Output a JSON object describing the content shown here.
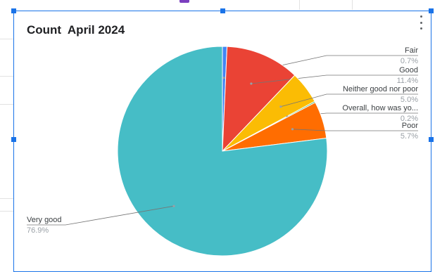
{
  "chart_data": {
    "type": "pie",
    "title": "Count  April 2024",
    "slices": [
      {
        "label": "Fair",
        "value": 0.7,
        "percent_label": "0.7%",
        "color": "#4285f4"
      },
      {
        "label": "Good",
        "value": 11.4,
        "percent_label": "11.4%",
        "color": "#ea4335"
      },
      {
        "label": "Neither good nor poor",
        "value": 5.0,
        "percent_label": "5.0%",
        "color": "#fbbc04"
      },
      {
        "label": "Overall, how was yo...",
        "value": 0.2,
        "percent_label": "0.2%",
        "color": "#34a853"
      },
      {
        "label": "Poor",
        "value": 5.7,
        "percent_label": "5.7%",
        "color": "#ff6d01"
      },
      {
        "label": "Very good",
        "value": 76.9,
        "percent_label": "76.9%",
        "color": "#46bdc6"
      }
    ]
  },
  "colors": {
    "selection_accent": "#1a73e8"
  },
  "icons": {
    "menu": "more-vert-icon"
  }
}
